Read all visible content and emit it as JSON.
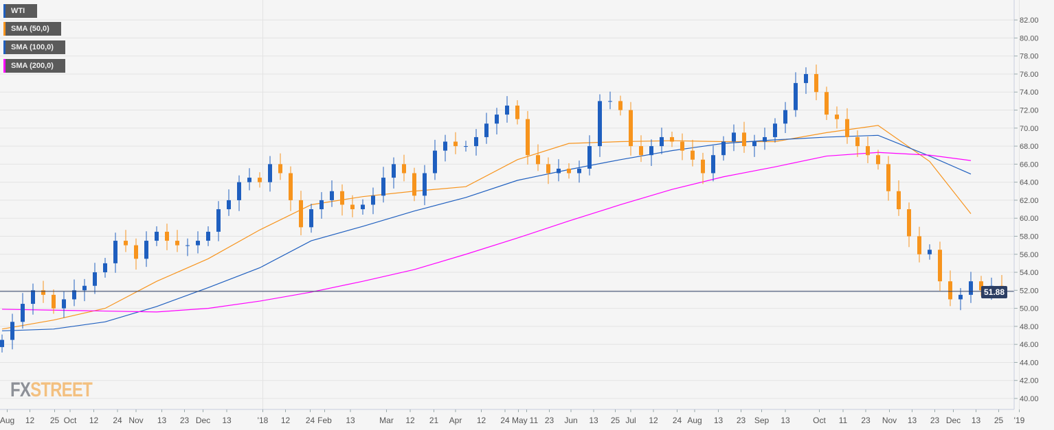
{
  "legend": [
    {
      "label": "WTI",
      "color": "#1f5fbf"
    },
    {
      "label": "SMA (50,0)",
      "color": "#f7941d"
    },
    {
      "label": "SMA (100,0)",
      "color": "#1f5fbf"
    },
    {
      "label": "SMA (200,0)",
      "color": "#ff00ff"
    }
  ],
  "logo": {
    "part1": "FX",
    "part2": "STREET"
  },
  "last_price": "51.88",
  "chart_data": {
    "type": "candlestick",
    "title": "WTI",
    "ylim": [
      39,
      83.2
    ],
    "yticks": [
      "40.00",
      "42.00",
      "44.00",
      "46.00",
      "48.00",
      "50.00",
      "52.00",
      "54.00",
      "56.00",
      "58.00",
      "60.00",
      "62.00",
      "64.00",
      "66.00",
      "68.00",
      "70.00",
      "72.00",
      "74.00",
      "76.00",
      "78.00",
      "80.00",
      "82.00"
    ],
    "xticks": [
      {
        "label": "Aug",
        "idx": 0.5
      },
      {
        "label": "12",
        "idx": 2.7
      },
      {
        "label": "25",
        "idx": 5.1
      },
      {
        "label": "Oct",
        "idx": 6.6
      },
      {
        "label": "12",
        "idx": 8.9
      },
      {
        "label": "24",
        "idx": 11.2
      },
      {
        "label": "Nov",
        "idx": 13
      },
      {
        "label": "13",
        "idx": 15.5
      },
      {
        "label": "23",
        "idx": 17.7
      },
      {
        "label": "Dec",
        "idx": 19.5
      },
      {
        "label": "13",
        "idx": 21.8
      },
      {
        "label": "'18",
        "idx": 25.3
      },
      {
        "label": "12",
        "idx": 27.5
      },
      {
        "label": "24",
        "idx": 29.9
      },
      {
        "label": "Feb",
        "idx": 31.3
      },
      {
        "label": "13",
        "idx": 33.8
      },
      {
        "label": "Mar",
        "idx": 37.3
      },
      {
        "label": "12",
        "idx": 39.6
      },
      {
        "label": "21",
        "idx": 41.9
      },
      {
        "label": "Apr",
        "idx": 44
      },
      {
        "label": "12",
        "idx": 46.5
      },
      {
        "label": "24",
        "idx": 48.8
      },
      {
        "label": "May",
        "idx": 50.1
      },
      {
        "label": "11",
        "idx": 50.9
      },
      {
        "label": "23",
        "idx": 53.1
      },
      {
        "label": "Jun",
        "idx": 55.2
      },
      {
        "label": "13",
        "idx": 57.4
      },
      {
        "label": "25",
        "idx": 59.5
      },
      {
        "label": "Jul",
        "idx": 61
      },
      {
        "label": "12",
        "idx": 63.2
      },
      {
        "label": "24",
        "idx": 65.5
      },
      {
        "label": "Aug",
        "idx": 67.2
      },
      {
        "label": "13",
        "idx": 69.5
      },
      {
        "label": "23",
        "idx": 71.7
      },
      {
        "label": "Sep",
        "idx": 73.7
      },
      {
        "label": "13",
        "idx": 76
      },
      {
        "label": "Oct",
        "idx": 79.3
      },
      {
        "label": "11",
        "idx": 81.6
      },
      {
        "label": "23",
        "idx": 83.8
      },
      {
        "label": "Nov",
        "idx": 86.1
      },
      {
        "label": "13",
        "idx": 88.3
      },
      {
        "label": "23",
        "idx": 90.5
      },
      {
        "label": "Dec",
        "idx": 92.3
      },
      {
        "label": "13",
        "idx": 94.5
      },
      {
        "label": "25",
        "idx": 96.7
      },
      {
        "label": "'19",
        "idx": 98.7
      }
    ],
    "close": [
      46.5,
      48.5,
      50.5,
      52,
      51.5,
      50,
      51,
      52,
      52.5,
      54,
      55,
      57.5,
      57,
      55.5,
      57.5,
      58.5,
      57.5,
      57,
      57,
      57.5,
      58.5,
      61,
      62,
      64,
      64.5,
      64,
      66,
      65,
      62,
      59,
      61,
      62,
      63,
      61.5,
      61,
      61.5,
      62.5,
      64.5,
      66,
      65,
      62.5,
      65,
      67.5,
      68.5,
      68,
      68,
      69,
      70.5,
      71.5,
      72.5,
      71,
      67,
      66,
      65,
      65.5,
      65,
      65.5,
      68,
      73,
      73,
      72,
      68,
      67,
      68,
      69,
      68.5,
      67.5,
      66.5,
      65,
      67,
      68.5,
      69.5,
      68,
      68.5,
      69,
      70.5,
      72,
      75,
      76,
      74,
      71.5,
      71,
      69,
      68,
      67,
      66,
      63,
      61,
      58,
      56,
      56.5,
      53,
      51,
      51.5,
      53,
      52,
      52.5,
      51.88
    ],
    "series": [
      {
        "name": "SMA (50,0)",
        "color": "#f7941d",
        "idx": [
          0,
          5,
          10,
          15,
          20,
          25,
          30,
          35,
          40,
          45,
          50,
          55,
          60,
          65,
          70,
          75,
          80,
          85,
          90,
          94
        ],
        "values": [
          47.7,
          48.7,
          50,
          53,
          55.5,
          58.7,
          61.5,
          62.4,
          63,
          63.5,
          66.5,
          68.3,
          68.5,
          68.6,
          68.5,
          68.5,
          69.5,
          70.3,
          66.3,
          60.5
        ]
      },
      {
        "name": "SMA (100,0)",
        "color": "#1f5fbf",
        "idx": [
          0,
          5,
          10,
          15,
          20,
          25,
          30,
          35,
          40,
          45,
          50,
          55,
          60,
          65,
          70,
          75,
          80,
          85,
          90,
          94
        ],
        "values": [
          47.5,
          47.7,
          48.5,
          50.2,
          52.3,
          54.5,
          57.5,
          59.1,
          60.8,
          62.3,
          64.2,
          65.4,
          66.5,
          67.5,
          68.3,
          68.7,
          69,
          69.2,
          66.9,
          64.9
        ]
      },
      {
        "name": "SMA (200,0)",
        "color": "#ff00ff",
        "idx": [
          0,
          5,
          10,
          15,
          20,
          25,
          30,
          35,
          40,
          45,
          50,
          55,
          60,
          65,
          70,
          75,
          80,
          85,
          90,
          94
        ],
        "values": [
          49.9,
          49.8,
          49.7,
          49.6,
          50,
          50.8,
          51.8,
          53,
          54.3,
          56,
          57.8,
          59.7,
          61.5,
          63.2,
          64.6,
          65.7,
          66.9,
          67.3,
          67,
          66.4
        ]
      }
    ],
    "up_color": "#1f5fbf",
    "down_color": "#f7941d"
  }
}
